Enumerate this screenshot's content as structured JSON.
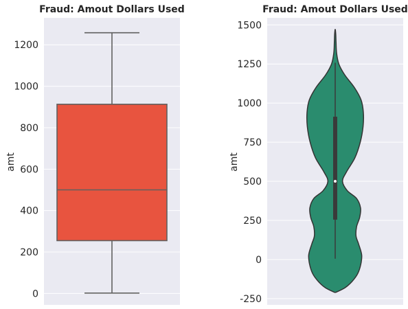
{
  "chart_data": [
    {
      "type": "box",
      "title": "Fraud: Amout Dollars Used",
      "xlabel": "",
      "ylabel": "amt",
      "ylim": [
        -55,
        1330
      ],
      "yticks": [
        0,
        200,
        400,
        600,
        800,
        1000,
        1200
      ],
      "grid": true,
      "color": "#E8543F",
      "box": {
        "whisker_low": 2,
        "q1": 255,
        "median": 500,
        "q3": 913,
        "whisker_high": 1258
      }
    },
    {
      "type": "violin",
      "title": "Fraud: Amout Dollars Used",
      "xlabel": "",
      "ylabel": "amt",
      "ylim": [
        -290,
        1545
      ],
      "yticks": [
        -250,
        0,
        250,
        500,
        750,
        1000,
        1250,
        1500
      ],
      "grid": true,
      "color": "#2A8C6E",
      "inner_box": {
        "whisker_low": 5,
        "q1": 255,
        "median": 500,
        "q3": 913,
        "whisker_high": 1258
      },
      "density": [
        {
          "y": -210,
          "w": 0.02
        },
        {
          "y": -180,
          "w": 0.35
        },
        {
          "y": -140,
          "w": 0.6
        },
        {
          "y": -90,
          "w": 0.8
        },
        {
          "y": -30,
          "w": 0.91
        },
        {
          "y": 30,
          "w": 0.94
        },
        {
          "y": 100,
          "w": 0.83
        },
        {
          "y": 150,
          "w": 0.74
        },
        {
          "y": 210,
          "w": 0.76
        },
        {
          "y": 270,
          "w": 0.87
        },
        {
          "y": 330,
          "w": 0.9
        },
        {
          "y": 390,
          "w": 0.76
        },
        {
          "y": 440,
          "w": 0.43
        },
        {
          "y": 500,
          "w": 0.26
        },
        {
          "y": 560,
          "w": 0.4
        },
        {
          "y": 650,
          "w": 0.7
        },
        {
          "y": 750,
          "w": 0.89
        },
        {
          "y": 850,
          "w": 0.99
        },
        {
          "y": 940,
          "w": 1.0
        },
        {
          "y": 1020,
          "w": 0.92
        },
        {
          "y": 1100,
          "w": 0.68
        },
        {
          "y": 1180,
          "w": 0.34
        },
        {
          "y": 1250,
          "w": 0.13
        },
        {
          "y": 1320,
          "w": 0.05
        },
        {
          "y": 1390,
          "w": 0.03
        },
        {
          "y": 1440,
          "w": 0.02
        },
        {
          "y": 1470,
          "w": 0.005
        }
      ]
    }
  ]
}
